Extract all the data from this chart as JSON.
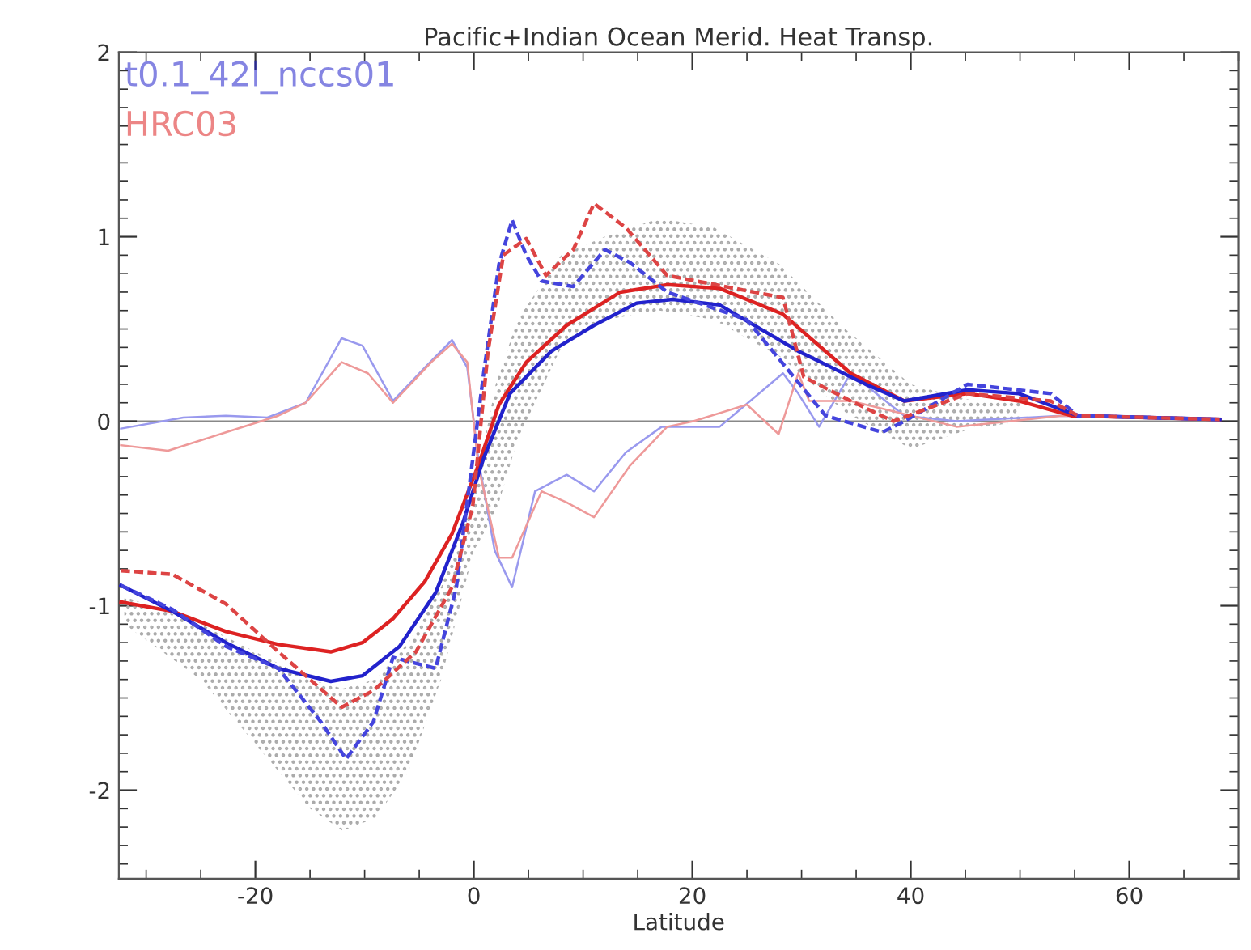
{
  "chart_data": {
    "type": "line",
    "title": "Pacific+Indian Ocean Merid. Heat Transp.",
    "xlabel": "Latitude",
    "xlim": [
      -32.5,
      70
    ],
    "ylim": [
      -2.48,
      2.0
    ],
    "xticks": [
      -20,
      0,
      20,
      40,
      60
    ],
    "yticks": [
      -2,
      -1,
      0,
      1,
      2
    ],
    "grid": false,
    "legend": "top left",
    "marker": "none",
    "ref_lines": [
      {
        "axis": "y",
        "value": 0,
        "color": "#888888"
      }
    ],
    "series": [
      {
        "type": "area",
        "color": "#aaaaaa",
        "x": [
          -32,
          -25,
          -20,
          -15,
          -12,
          -9,
          -6,
          -3,
          0,
          2,
          4,
          8,
          12,
          17,
          22,
          28,
          34,
          40,
          45,
          50
        ],
        "values": [
          null,
          null,
          null,
          null,
          null,
          null,
          null,
          null,
          null,
          null,
          null,
          null,
          null,
          null,
          null,
          null,
          null,
          null,
          null,
          null
        ],
        "upper": [
          -0.95,
          -1.1,
          -1.25,
          -1.4,
          -1.45,
          -1.4,
          -1.2,
          -0.9,
          -0.4,
          0.2,
          0.55,
          0.9,
          1.0,
          1.1,
          1.05,
          0.85,
          0.5,
          0.2,
          0.12,
          0.1
        ],
        "lower": [
          -1.1,
          -1.4,
          -1.75,
          -2.1,
          -2.22,
          -2.15,
          -1.9,
          -1.4,
          -0.7,
          -0.5,
          -0.1,
          0.4,
          0.55,
          0.6,
          0.55,
          0.35,
          0.05,
          -0.15,
          -0.05,
          0.0
        ]
      },
      {
        "color": "#9999ee",
        "line_style": "solid",
        "x": [
          -32.3,
          -26.6,
          -22.7,
          -18.9,
          -15.4,
          -12.1,
          -10.2,
          -7.4,
          -4.5,
          -2,
          -0.6,
          0.4,
          1.9,
          3.5,
          5.6,
          8.5,
          11,
          13.9,
          17.2,
          22.5,
          28.3,
          29.7,
          31.6,
          34.5,
          39.4,
          44.2,
          53.8,
          68.3
        ],
        "values": [
          -0.04,
          0.02,
          0.03,
          0.02,
          0.1,
          0.45,
          0.41,
          0.11,
          0.29,
          0.44,
          0.29,
          -0.2,
          -0.7,
          -0.9,
          -0.38,
          -0.29,
          -0.38,
          -0.17,
          -0.03,
          -0.03,
          0.26,
          0.15,
          -0.03,
          0.26,
          0.03,
          0.0,
          0.03,
          0.01
        ]
      },
      {
        "color": "#ee9999",
        "line_style": "solid",
        "x": [
          -32.3,
          -28,
          -22.7,
          -17.9,
          -15.4,
          -12.1,
          -9.7,
          -7.4,
          -3.9,
          -2,
          -0.6,
          0.4,
          2.3,
          3.5,
          6.2,
          8.5,
          11,
          14.3,
          17.7,
          20.1,
          25,
          27.9,
          29.7,
          30.7,
          34.5,
          44.2,
          53.8,
          68.3
        ],
        "values": [
          -0.13,
          -0.16,
          -0.06,
          0.03,
          0.1,
          0.32,
          0.26,
          0.1,
          0.32,
          0.42,
          0.32,
          -0.24,
          -0.74,
          -0.74,
          -0.38,
          -0.44,
          -0.52,
          -0.24,
          -0.03,
          0.0,
          0.09,
          -0.07,
          0.26,
          0.11,
          0.11,
          -0.03,
          0.03,
          0.01
        ]
      },
      {
        "color": "#dd4444",
        "line_style": "dashed",
        "x": [
          -32.3,
          -27.6,
          -22.7,
          -17.9,
          -12.1,
          -9.2,
          -5.3,
          -2,
          -0.1,
          1.3,
          2.7,
          4.8,
          6.6,
          9.1,
          11,
          13.9,
          17.7,
          28.3,
          30.2,
          34.5,
          38.4,
          45.2,
          52.8,
          55.3,
          68.3
        ],
        "values": [
          -0.81,
          -0.83,
          -0.99,
          -1.25,
          -1.55,
          -1.46,
          -1.25,
          -0.9,
          -0.46,
          0.38,
          0.9,
          0.99,
          0.79,
          0.93,
          1.18,
          1.05,
          0.79,
          0.67,
          0.24,
          0.11,
          0.0,
          0.15,
          0.11,
          0.03,
          0.01
        ]
      },
      {
        "color": "#4444dd",
        "line_style": "dashed",
        "x": [
          -32.3,
          -27.6,
          -22.7,
          -17.9,
          -14,
          -11.7,
          -9.2,
          -7.4,
          -3.5,
          -1.6,
          0.9,
          2.3,
          3.5,
          4.8,
          6.2,
          9.1,
          12,
          14.3,
          17.7,
          25,
          32.2,
          37.4,
          39.4,
          45.2,
          52.8,
          55.3,
          68.3
        ],
        "values": [
          -0.89,
          -1.02,
          -1.22,
          -1.34,
          -1.63,
          -1.83,
          -1.63,
          -1.28,
          -1.34,
          -0.9,
          0.26,
          0.85,
          1.09,
          0.9,
          0.76,
          0.73,
          0.93,
          0.86,
          0.7,
          0.55,
          0.03,
          -0.06,
          0.0,
          0.2,
          0.15,
          0.03,
          0.01
        ]
      },
      {
        "name": "HRC03",
        "color": "#dd2222",
        "line_style": "solid",
        "x": [
          -32.3,
          -27.6,
          -22.7,
          -17.9,
          -13.1,
          -10.2,
          -7.4,
          -4.5,
          -2,
          0.4,
          2.3,
          4.8,
          8.5,
          13.4,
          17.7,
          22.5,
          28.3,
          34.5,
          39.4,
          45.2,
          49.9,
          54.7,
          68.3
        ],
        "values": [
          -0.98,
          -1.03,
          -1.14,
          -1.21,
          -1.25,
          -1.2,
          -1.07,
          -0.87,
          -0.61,
          -0.24,
          0.09,
          0.32,
          0.52,
          0.7,
          0.74,
          0.72,
          0.58,
          0.26,
          0.11,
          0.15,
          0.11,
          0.03,
          0.01
        ]
      },
      {
        "name": "t0.1_42l_nccs01",
        "color": "#2222cc",
        "line_style": "solid",
        "x": [
          -32.3,
          -27.6,
          -22.7,
          -17.9,
          -13.1,
          -10.2,
          -6.8,
          -3.5,
          -1.0,
          0.9,
          3.3,
          7.1,
          11,
          14.9,
          18.2,
          22.5,
          29.7,
          35.9,
          39.4,
          45.2,
          49.9,
          55.3,
          68.3
        ],
        "values": [
          -0.89,
          -1.03,
          -1.2,
          -1.34,
          -1.41,
          -1.38,
          -1.22,
          -0.93,
          -0.55,
          -0.2,
          0.15,
          0.38,
          0.52,
          0.64,
          0.66,
          0.63,
          0.38,
          0.2,
          0.11,
          0.17,
          0.15,
          0.03,
          0.01
        ]
      }
    ]
  }
}
